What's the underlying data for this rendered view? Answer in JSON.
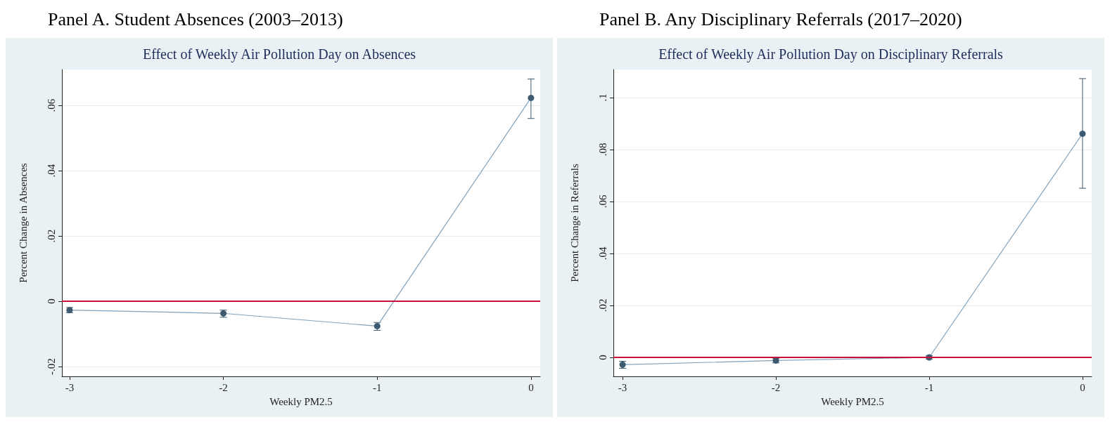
{
  "chart_data": [
    {
      "type": "line",
      "title": "Panel A. Student Absences (2003–2013)",
      "subtitle": "Effect of Weekly Air Pollution Day on Absences",
      "xlabel": "Weekly PM2.5",
      "ylabel": "Percent Change in Absences",
      "x": [
        -3,
        -2,
        -1,
        0
      ],
      "series": [
        {
          "color": "#3d5a70",
          "values": [
            -0.0027,
            -0.0037,
            -0.0076,
            0.0623
          ],
          "errors": [
            [
              -0.0035,
              -0.0019
            ],
            [
              -0.0049,
              -0.0027
            ],
            [
              -0.0089,
              -0.0065
            ],
            [
              0.056,
              0.0681
            ]
          ]
        }
      ],
      "xlim": [
        -3.05,
        0.06
      ],
      "xticks": [
        -3,
        -2,
        -1,
        0
      ],
      "ylim": [
        -0.023,
        0.071
      ],
      "yticks": [
        {
          "value": -0.02,
          "label": "-.02"
        },
        0,
        {
          "value": 0.02,
          "label": ".02"
        },
        {
          "value": 0.04,
          "label": ".04"
        },
        {
          "value": 0.06,
          "label": ".06"
        }
      ],
      "ref_lines": [
        {
          "axis": "y",
          "value": 0,
          "color": "#c8103c"
        }
      ],
      "grid": "y",
      "marker": "circle",
      "line_style": "solid"
    },
    {
      "type": "line",
      "title": "Panel B. Any Disciplinary Referrals (2017–2020)",
      "subtitle": "Effect of Weekly Air Pollution Day on Disciplinary Referrals",
      "xlabel": "Weekly PM2.5",
      "ylabel": "Percent Change in Referrals",
      "x": [
        -3,
        -2,
        -1,
        0
      ],
      "series": [
        {
          "color": "#3d5a70",
          "values": [
            -0.0028,
            -0.0012,
            0.0,
            0.0861
          ],
          "errors": [
            [
              -0.0042,
              -0.0015
            ],
            [
              -0.0021,
              -0.0004
            ],
            [
              -0.0007,
              0.0007
            ],
            [
              0.0651,
              0.1073
            ]
          ]
        }
      ],
      "xlim": [
        -3.06,
        0.06
      ],
      "xticks": [
        -3,
        -2,
        -1,
        0
      ],
      "ylim": [
        -0.0073,
        0.1108
      ],
      "yticks": [
        0,
        {
          "value": 0.02,
          "label": ".02"
        },
        {
          "value": 0.04,
          "label": ".04"
        },
        {
          "value": 0.06,
          "label": ".06"
        },
        {
          "value": 0.08,
          "label": ".08"
        },
        {
          "value": 0.1,
          "label": ".1"
        }
      ],
      "ref_lines": [
        {
          "axis": "y",
          "value": 0,
          "color": "#c8103c"
        }
      ],
      "grid": "y",
      "marker": "circle",
      "line_style": "solid"
    }
  ]
}
